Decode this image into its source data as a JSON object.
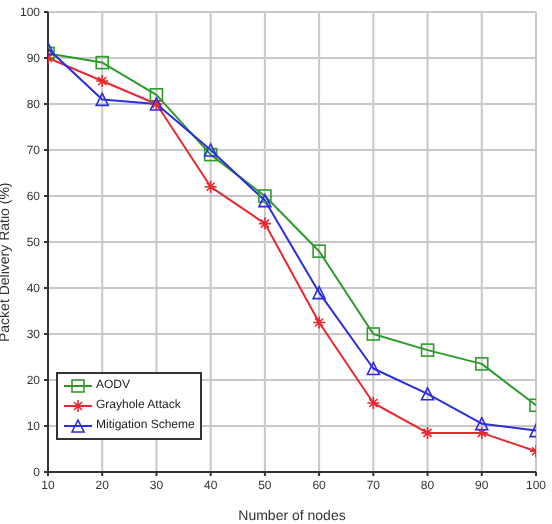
{
  "chart_data": {
    "type": "line",
    "xlabel": "Number of nodes",
    "ylabel": "Packet Delivery Ratio (%)",
    "x": [
      10,
      20,
      30,
      40,
      50,
      60,
      70,
      80,
      90,
      100
    ],
    "xlim": [
      10,
      100
    ],
    "xticks": [
      10,
      20,
      30,
      40,
      50,
      60,
      70,
      80,
      90,
      100
    ],
    "ylim": [
      0,
      100
    ],
    "yticks": [
      0,
      10,
      20,
      30,
      40,
      50,
      60,
      70,
      80,
      90,
      100
    ],
    "grid": true,
    "legend": "bottom left",
    "series": [
      {
        "name": "AODV",
        "color": "#2e9a2e",
        "marker": "square",
        "values": [
          91,
          89,
          82,
          69,
          60,
          48,
          30,
          26.5,
          23.5,
          14.5
        ]
      },
      {
        "name": "Grayhole Attack",
        "color": "#e8282f",
        "marker": "cross",
        "values": [
          90,
          85,
          80,
          62,
          54,
          32.5,
          15,
          8.5,
          8.5,
          4.5
        ]
      },
      {
        "name": "Mitigation Scheme",
        "color": "#2d2de0",
        "marker": "triangle",
        "values": [
          92,
          81,
          80,
          70,
          59,
          39,
          22.5,
          17,
          10.5,
          9
        ]
      }
    ]
  }
}
